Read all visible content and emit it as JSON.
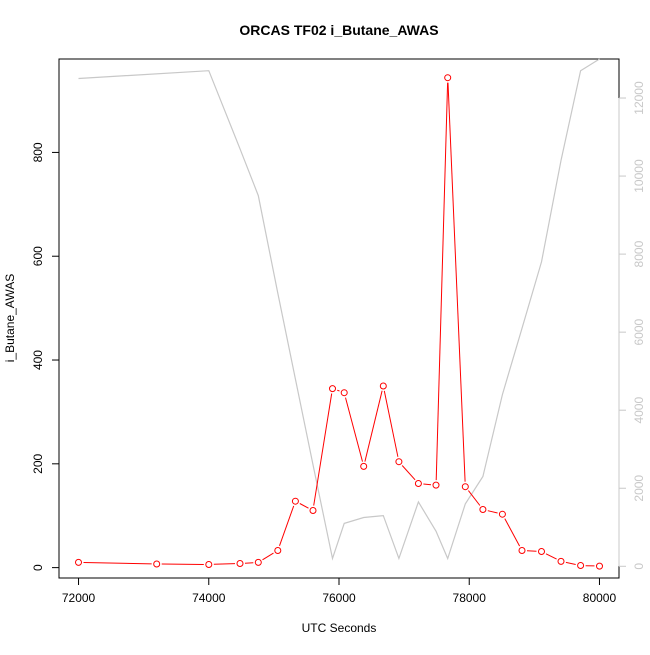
{
  "chart_data": {
    "type": "line",
    "title": "ORCAS TF02 i_Butane_AWAS",
    "xlabel": "UTC Seconds",
    "ylabel": "i_Butane_AWAS",
    "xlim": [
      71700,
      80300
    ],
    "ylim": [
      -20,
      980
    ],
    "y2lim": [
      -300,
      13000
    ],
    "x_ticks": [
      72000,
      74000,
      76000,
      78000,
      80000
    ],
    "y_ticks": [
      0,
      200,
      400,
      600,
      800
    ],
    "y2_ticks": [
      0,
      2000,
      4000,
      6000,
      8000,
      10000,
      12000
    ],
    "grid": false,
    "legend": "none",
    "colors": {
      "primary": "#ff0000",
      "secondary": "#c8c8c8",
      "axis": "#000000"
    },
    "series": [
      {
        "axis": "left",
        "style": "line+points",
        "x": [
          72000,
          73200,
          74000,
          74480,
          74760,
          75060,
          75330,
          75600,
          75900,
          76080,
          76380,
          76680,
          76920,
          77220,
          77490,
          77670,
          77940,
          78210,
          78510,
          78810,
          79110,
          79410,
          79710,
          80000
        ],
        "y": [
          10,
          7,
          6,
          8,
          10,
          33,
          128,
          110,
          345,
          337,
          195,
          350,
          204,
          162,
          159,
          944,
          156,
          112,
          103,
          33,
          31,
          12,
          4,
          3
        ]
      },
      {
        "axis": "right",
        "style": "line",
        "x": [
          72000,
          74000,
          74480,
          74760,
          75060,
          75330,
          75600,
          75900,
          76080,
          76380,
          76680,
          76920,
          77220,
          77490,
          77670,
          77940,
          78210,
          78510,
          78810,
          79110,
          79410,
          79710,
          80000
        ],
        "y": [
          12500,
          12700,
          10700,
          9500,
          7000,
          4800,
          2600,
          200,
          1100,
          1250,
          1300,
          200,
          1650,
          900,
          200,
          1600,
          2300,
          4400,
          6100,
          7800,
          10400,
          12700,
          13000
        ]
      }
    ]
  }
}
